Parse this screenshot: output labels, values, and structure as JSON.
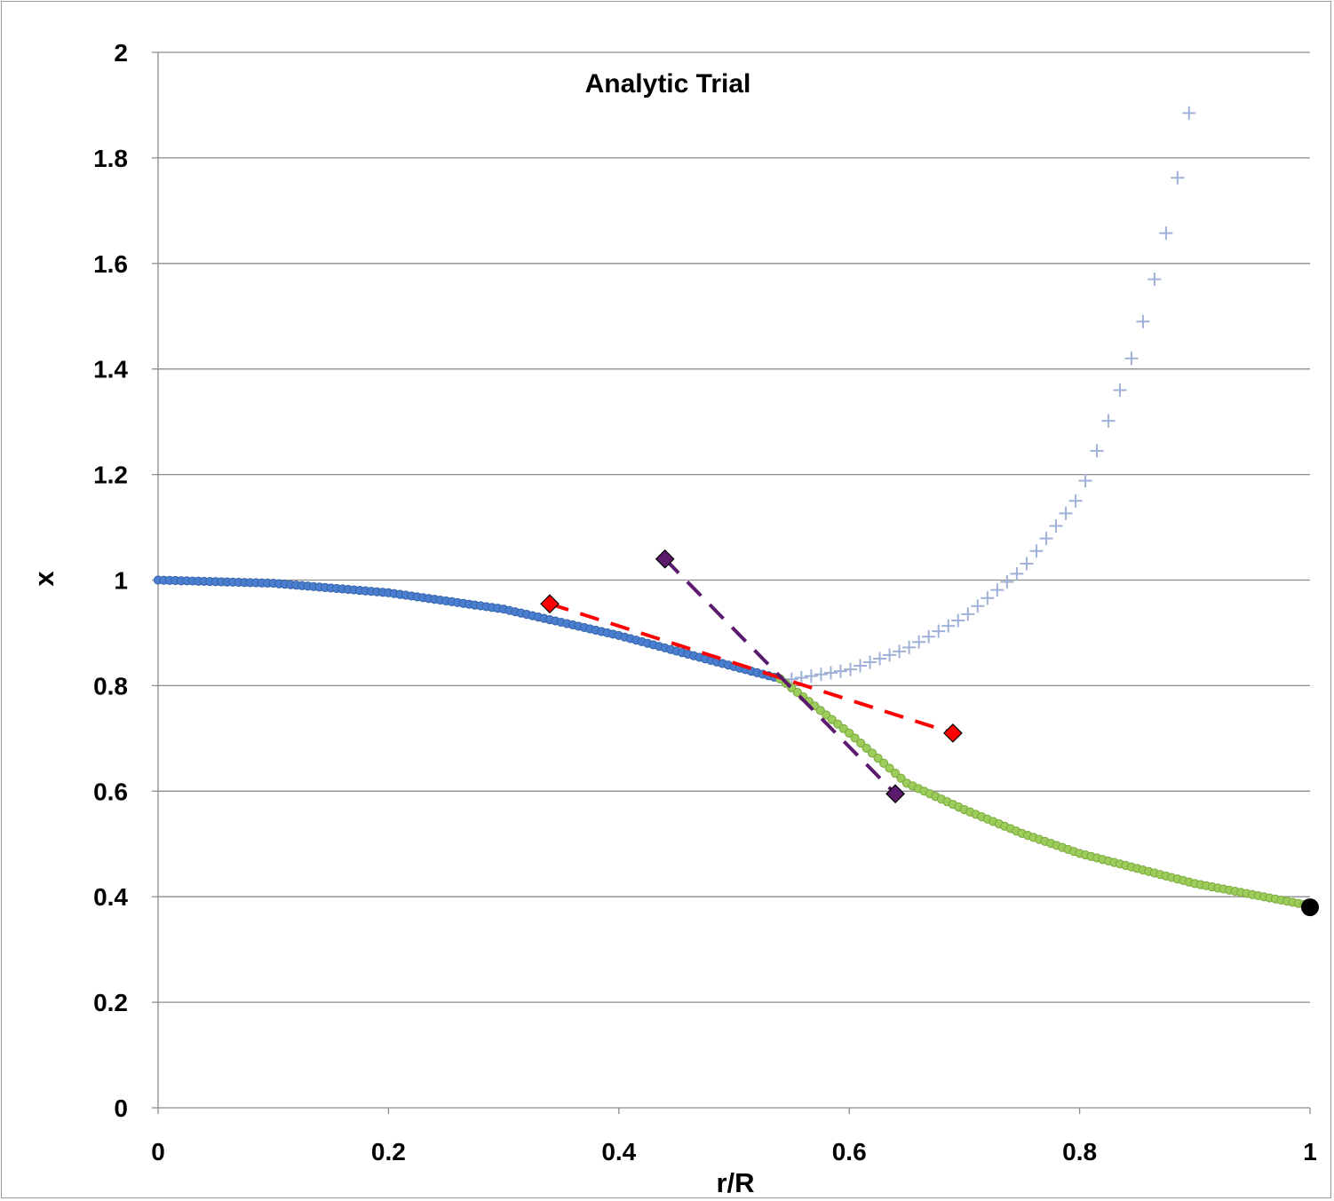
{
  "chart_data": {
    "type": "scatter",
    "title": "Analytic Trial",
    "xlabel": "r/R",
    "ylabel": "x",
    "xlim": [
      0,
      1
    ],
    "ylim": [
      0,
      2
    ],
    "x_ticks": [
      "0",
      "0.2",
      "0.4",
      "0.6",
      "0.8",
      "1"
    ],
    "y_ticks": [
      "0",
      "0.2",
      "0.4",
      "0.6",
      "0.8",
      "1",
      "1.2",
      "1.4",
      "1.6",
      "1.8",
      "2"
    ],
    "grid": "horizontal",
    "legend": "none",
    "colors": {
      "inner": "#4a7ed0",
      "inner_edge": "#3563a8",
      "outer": "#9ccc5a",
      "outer_edge": "#7aa83c",
      "divergent": "#9fb1d6",
      "red_tangent": "#ff0000",
      "purple_tangent": "#5b1a6e",
      "endpoint": "#000000",
      "grid": "#8c8c8c"
    },
    "series": [
      {
        "role": "inner-solution",
        "marker": "circle",
        "x_start": 0,
        "x_end": 0.54,
        "x_step": 0.005,
        "points": [
          [
            0,
            1.0
          ],
          [
            0.1,
            0.994
          ],
          [
            0.2,
            0.976
          ],
          [
            0.3,
            0.945
          ],
          [
            0.4,
            0.895
          ],
          [
            0.5,
            0.836
          ],
          [
            0.54,
            0.813
          ]
        ]
      },
      {
        "role": "divergent-continuation",
        "marker": "plus",
        "points": [
          [
            0.55,
            0.812
          ],
          [
            0.6,
            0.83
          ],
          [
            0.65,
            0.87
          ],
          [
            0.7,
            0.93
          ],
          [
            0.75,
            1.02
          ],
          [
            0.8,
            1.16
          ],
          [
            0.83,
            1.33
          ],
          [
            0.85,
            1.45
          ],
          [
            0.87,
            1.61
          ],
          [
            0.88,
            1.705
          ],
          [
            0.89,
            1.82
          ],
          [
            0.9,
            1.95
          ]
        ]
      },
      {
        "role": "outer-solution",
        "marker": "circle",
        "x_start": 0.54,
        "x_end": 1.0,
        "x_step": 0.005,
        "points": [
          [
            0.54,
            0.813
          ],
          [
            0.6,
            0.71
          ],
          [
            0.65,
            0.615
          ],
          [
            0.7,
            0.565
          ],
          [
            0.75,
            0.52
          ],
          [
            0.8,
            0.482
          ],
          [
            0.9,
            0.425
          ],
          [
            1.0,
            0.383
          ]
        ]
      },
      {
        "role": "red-tangent",
        "marker": "diamond",
        "line": "dashed",
        "points": [
          [
            0.34,
            0.955
          ],
          [
            0.69,
            0.71
          ]
        ]
      },
      {
        "role": "purple-tangent",
        "marker": "diamond",
        "line": "dashed",
        "points": [
          [
            0.44,
            1.04
          ],
          [
            0.64,
            0.595
          ]
        ]
      },
      {
        "role": "endpoint",
        "marker": "filled-circle",
        "points": [
          [
            1.0,
            0.38
          ]
        ]
      }
    ]
  }
}
